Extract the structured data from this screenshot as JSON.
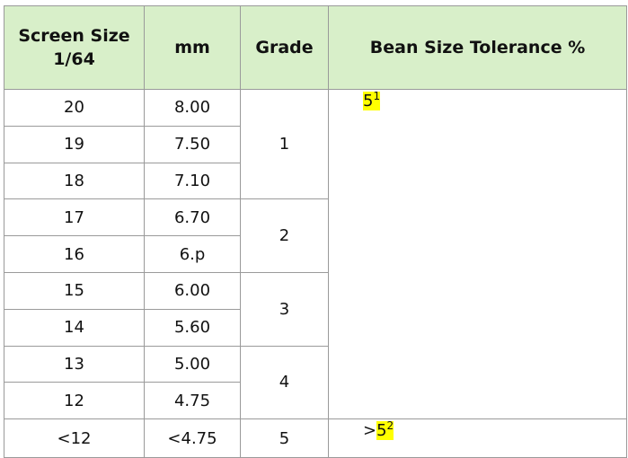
{
  "table": {
    "header": [
      [
        "Screen Size",
        "1/64"
      ],
      [
        "mm"
      ],
      [
        "Grade"
      ],
      [
        "Bean Size Tolerance %"
      ]
    ],
    "sections": [
      {
        "tolerance": {
          "value": "5",
          "note": "1"
        },
        "groups": [
          {
            "grade": "1",
            "rows": [
              {
                "screen": "20",
                "mm": "8.00"
              },
              {
                "screen": "19",
                "mm": "7.50"
              },
              {
                "screen": "18",
                "mm": "7.10"
              }
            ]
          },
          {
            "grade": "2",
            "rows": [
              {
                "screen": "17",
                "mm": "6.70"
              },
              {
                "screen": "16",
                "mm": "6.p"
              }
            ]
          },
          {
            "grade": "3",
            "rows": [
              {
                "screen": "15",
                "mm": "6.00"
              },
              {
                "screen": "14",
                "mm": "5.60"
              }
            ]
          },
          {
            "grade": "4",
            "rows": [
              {
                "screen": "13",
                "mm": "5.00"
              },
              {
                "screen": "12",
                "mm": "4.75"
              }
            ]
          }
        ]
      },
      {
        "tolerance": {
          "prefix": ">",
          "value": "5",
          "note": "2"
        },
        "groups": [
          {
            "grade": "5",
            "rows": [
              {
                "screen": "<12",
                "mm": "<4.75"
              }
            ]
          }
        ]
      }
    ]
  }
}
